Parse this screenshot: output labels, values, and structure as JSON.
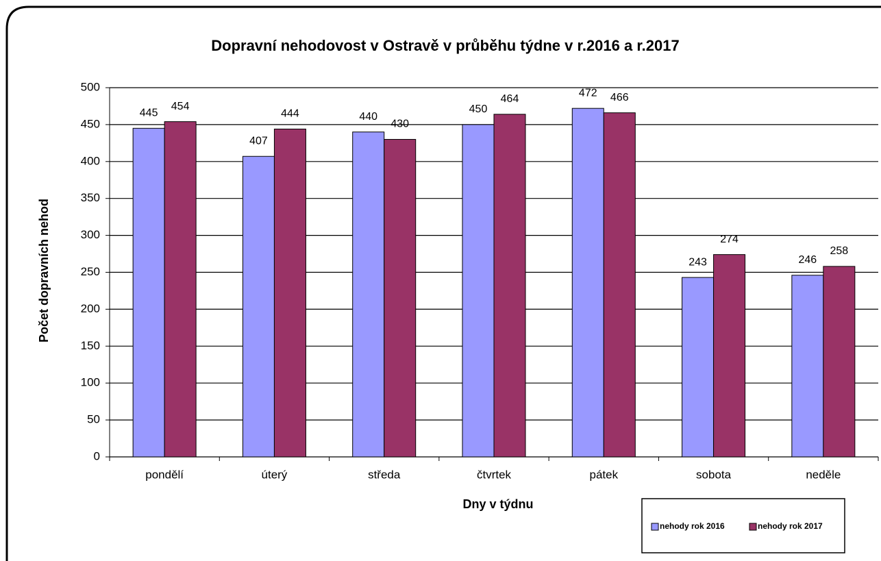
{
  "chart_data": {
    "type": "bar",
    "title": "Dopravní nehodovost v Ostravě v průběhu týdne v r.2016 a r.2017",
    "x_label": "Dny v týdnu",
    "y_label": "Počet dopravních nehod",
    "categories": [
      "pondělí",
      "úterý",
      "středa",
      "čtvrtek",
      "pátek",
      "sobota",
      "neděle"
    ],
    "series": [
      {
        "name": "nehody rok 2016",
        "color": "#9999ff",
        "values": [
          445,
          407,
          440,
          450,
          472,
          243,
          246
        ]
      },
      {
        "name": "nehody rok 2017",
        "color": "#993366",
        "values": [
          454,
          444,
          430,
          464,
          466,
          274,
          258
        ]
      }
    ],
    "ylim": [
      0,
      500
    ],
    "yticks": [
      0,
      50,
      100,
      150,
      200,
      250,
      300,
      350,
      400,
      450,
      500
    ],
    "grid": true,
    "legend": "bottom-right"
  }
}
